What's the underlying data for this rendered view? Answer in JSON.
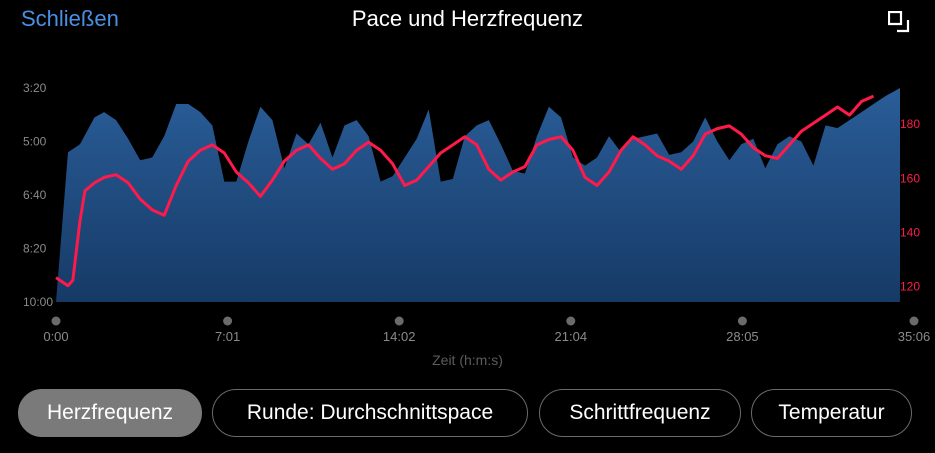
{
  "header": {
    "close_label": "Schließen",
    "title": "Pace und Herzfrequenz"
  },
  "icons": {
    "expand": "expand-icon"
  },
  "colors": {
    "accent": "#4a90e2",
    "pace_fill": "#1f4a7d",
    "heart_rate_line": "#ff1a4b",
    "right_axis_text": "#ff1a4b",
    "axis_text": "#8a8a8a"
  },
  "chart_data": {
    "type": "area",
    "title": "Pace und Herzfrequenz",
    "xlabel": "Zeit (h:m:s)",
    "x_ticks": [
      "0:00",
      "7:01",
      "14:02",
      "21:04",
      "28:05",
      "35:06"
    ],
    "x_range_min": [
      0,
      35.1
    ],
    "left_axis": {
      "ticks": [
        "3:20",
        "5:00",
        "6:40",
        "8:20",
        "10:00"
      ],
      "range_sec_per_km": [
        200,
        600
      ],
      "inverted": true
    },
    "right_axis": {
      "ticks": [
        "120",
        "140",
        "160",
        "180"
      ],
      "range": [
        114,
        193
      ]
    },
    "grid": false,
    "series": [
      {
        "kind": "area",
        "unit": "min/km",
        "axis": "left",
        "x_min": [
          0,
          0.5,
          1,
          1.6,
          2,
          2.5,
          3,
          3.5,
          4,
          4.5,
          5,
          5.5,
          6,
          6.5,
          7,
          7.5,
          8,
          8.5,
          9,
          9.5,
          10,
          10.5,
          11,
          11.5,
          12,
          12.5,
          13,
          13.5,
          14,
          14.5,
          15,
          15.5,
          16,
          16.5,
          17,
          17.5,
          18,
          18.5,
          19,
          19.5,
          20,
          20.5,
          21,
          21.5,
          22,
          22.5,
          23,
          23.5,
          24,
          24.5,
          25,
          25.5,
          26,
          26.5,
          27,
          27.5,
          28,
          28.5,
          29,
          29.5,
          30,
          30.5,
          31,
          31.5,
          32,
          32.5,
          33,
          33.5,
          34,
          34.5,
          35.1
        ],
        "y_sec": [
          600,
          320,
          305,
          255,
          245,
          260,
          295,
          335,
          330,
          290,
          230,
          230,
          245,
          270,
          375,
          375,
          300,
          235,
          260,
          350,
          285,
          305,
          265,
          330,
          270,
          260,
          290,
          375,
          365,
          330,
          295,
          240,
          375,
          370,
          290,
          270,
          260,
          305,
          355,
          360,
          290,
          235,
          255,
          330,
          345,
          330,
          290,
          320,
          295,
          290,
          285,
          325,
          320,
          300,
          255,
          300,
          335,
          305,
          295,
          350,
          305,
          290,
          300,
          345,
          270,
          275,
          260,
          245,
          230,
          215,
          200
        ]
      },
      {
        "kind": "line",
        "name": "Herzfrequenz",
        "axis": "right",
        "x_min": [
          0,
          0.5,
          0.7,
          1,
          1.2,
          1.6,
          2,
          2.5,
          3,
          3.5,
          4,
          4.5,
          5,
          5.5,
          6,
          6.5,
          7,
          7.5,
          8,
          8.5,
          9,
          9.5,
          10,
          10.5,
          11,
          11.5,
          12,
          12.5,
          13,
          13.5,
          14,
          14.5,
          15,
          15.5,
          16,
          16.5,
          17,
          17.5,
          18,
          18.5,
          19,
          19.5,
          20,
          20.5,
          21,
          21.5,
          22,
          22.5,
          23,
          23.5,
          24,
          24.5,
          25,
          25.5,
          26,
          26.5,
          27,
          27.5,
          28,
          28.5,
          29,
          29.5,
          30,
          30.5,
          31,
          31.5,
          32,
          32.5,
          33,
          33.5,
          34,
          34.5,
          35.1
        ],
        "y": [
          123,
          120,
          122,
          144,
          155,
          158,
          160,
          161,
          158,
          152,
          148,
          146,
          157,
          166,
          170,
          172,
          169,
          162,
          158,
          153,
          159,
          166,
          170,
          172,
          167,
          163,
          165,
          170,
          173,
          170,
          165,
          157,
          159,
          164,
          169,
          172,
          175,
          172,
          163,
          159,
          162,
          164,
          172,
          174,
          175,
          170,
          160,
          157,
          162,
          170,
          175,
          172,
          168,
          166,
          163,
          168,
          176,
          178,
          179,
          176,
          171,
          168,
          167,
          172,
          177,
          180,
          183,
          186,
          183,
          188,
          190
        ]
      }
    ]
  },
  "tabs": [
    {
      "label": "Herzfrequenz",
      "active": true
    },
    {
      "label": "Runde: Durchschnittspace",
      "active": false
    },
    {
      "label": "Schrittfrequenz",
      "active": false
    },
    {
      "label": "Temperatur",
      "active": false
    }
  ]
}
